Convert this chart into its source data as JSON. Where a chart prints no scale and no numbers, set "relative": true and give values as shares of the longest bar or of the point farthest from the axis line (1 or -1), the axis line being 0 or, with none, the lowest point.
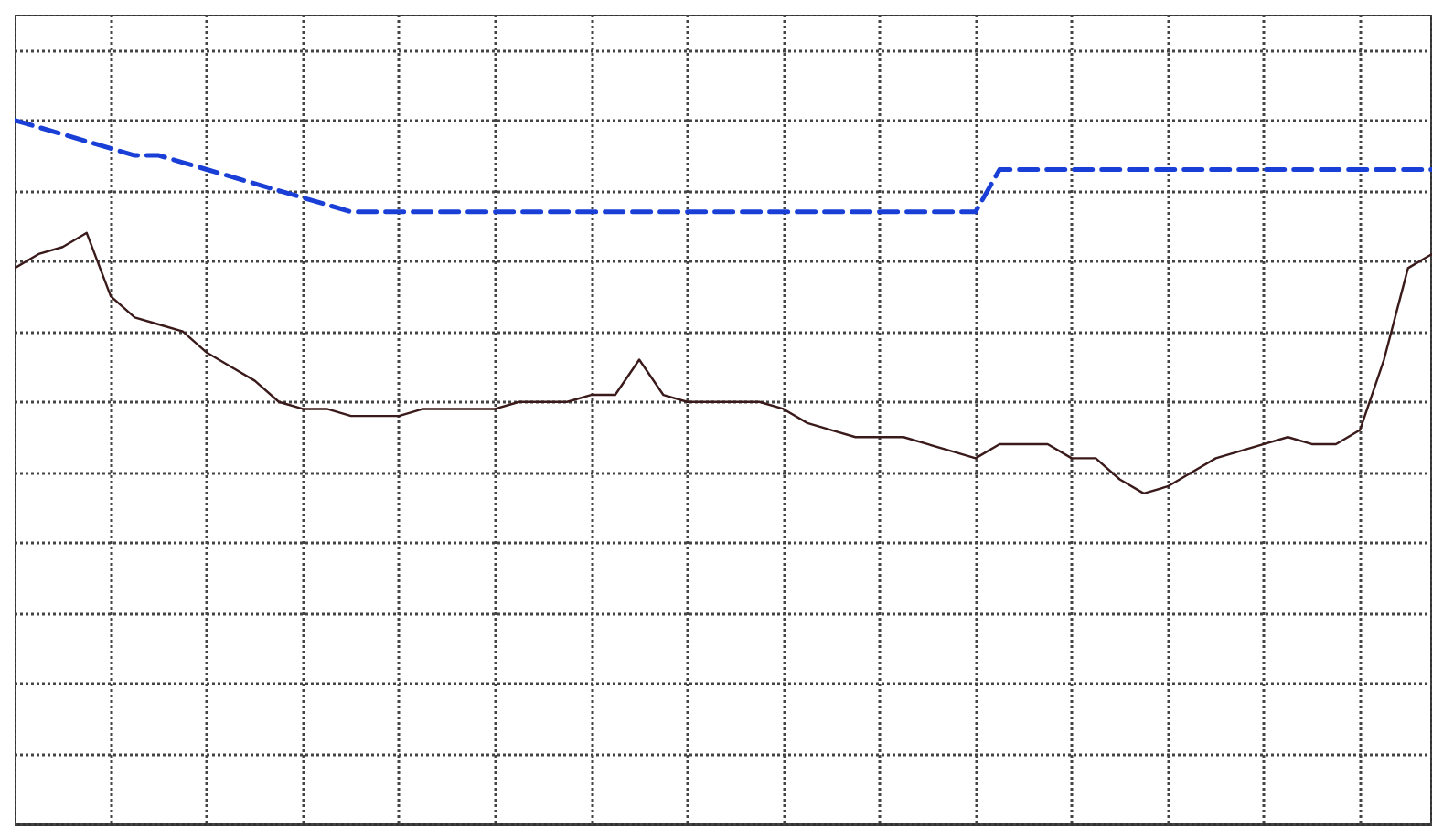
{
  "chart_data": {
    "type": "line",
    "relative": true,
    "grid": true,
    "marker": "none",
    "categories": [
      null,
      null,
      null,
      null,
      null,
      null,
      null,
      null,
      null,
      null,
      null,
      null,
      null,
      null,
      null,
      null,
      null,
      null,
      null,
      null,
      null,
      null,
      null,
      null,
      null,
      null,
      null,
      null,
      null,
      null,
      null,
      null,
      null,
      null,
      null,
      null,
      null,
      null,
      null,
      null,
      null,
      null,
      null,
      null,
      null,
      null,
      null,
      null,
      null,
      null,
      null,
      null,
      null,
      null,
      null,
      null,
      null,
      null,
      null,
      null
    ],
    "series": [
      {
        "color": "#1a3fd6",
        "line_style": "dashed",
        "values": [
          1,
          0.99,
          0.98,
          0.97,
          0.96,
          0.95,
          0.95,
          0.94,
          0.93,
          0.92,
          0.91,
          0.9,
          0.89,
          0.88,
          0.87,
          0.87,
          0.87,
          0.87,
          0.87,
          0.87,
          0.87,
          0.87,
          0.87,
          0.87,
          0.87,
          0.87,
          0.87,
          0.87,
          0.87,
          0.87,
          0.87,
          0.87,
          0.87,
          0.87,
          0.87,
          0.87,
          0.87,
          0.87,
          0.87,
          0.87,
          0.87,
          0.93,
          0.93,
          0.93,
          0.93,
          0.93,
          0.93,
          0.93,
          0.93,
          0.93,
          0.93,
          0.93,
          0.93,
          0.93,
          0.93,
          0.93,
          0.93,
          0.93,
          0.93,
          0.93
        ]
      },
      {
        "color": "#3a1a1a",
        "line_style": "solid",
        "values": [
          0.79,
          0.81,
          0.82,
          0.84,
          0.75,
          0.72,
          0.71,
          0.7,
          0.67,
          0.65,
          0.63,
          0.6,
          0.59,
          0.59,
          0.58,
          0.58,
          0.58,
          0.59,
          0.59,
          0.59,
          0.59,
          0.6,
          0.6,
          0.6,
          0.61,
          0.61,
          0.66,
          0.61,
          0.6,
          0.6,
          0.6,
          0.6,
          0.59,
          0.57,
          0.56,
          0.55,
          0.55,
          0.55,
          0.54,
          0.53,
          0.52,
          0.54,
          0.54,
          0.54,
          0.52,
          0.52,
          0.49,
          0.47,
          0.48,
          0.5,
          0.52,
          0.53,
          0.54,
          0.55,
          0.54,
          0.54,
          0.56,
          0.66,
          0.79,
          0.81
        ]
      }
    ]
  }
}
